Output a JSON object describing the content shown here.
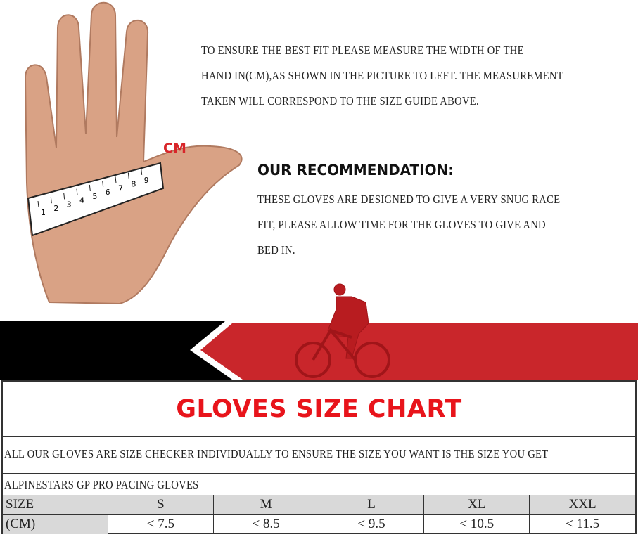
{
  "instructions": {
    "lines": [
      "TO ENSURE THE BEST FIT PLEASE MEASURE THE WIDTH OF THE",
      "HAND IN(CM),AS SHOWN IN THE PICTURE TO LEFT. THE MEASUREMENT",
      "TAKEN WILL CORRESPOND TO THE SIZE GUIDE ABOVE."
    ]
  },
  "hand_image": {
    "unit_label": "CM",
    "ruler_numbers": [
      "1",
      "2",
      "3",
      "4",
      "5",
      "6",
      "7",
      "8",
      "9"
    ]
  },
  "recommendation": {
    "title": "OUR RECOMMENDATION:",
    "lines": [
      "THESE GLOVES ARE DESIGNED TO GIVE A VERY SNUG RACE",
      "FIT, PLEASE ALLOW TIME FOR THE GLOVES TO GIVE AND",
      "BED IN."
    ]
  },
  "colors": {
    "accent_red": "#e8141b",
    "banner_red": "#c9262b",
    "banner_black": "#000000",
    "header_grey": "#d9d9d9"
  },
  "size_chart": {
    "title": "GLOVES SIZE CHART",
    "note": "ALL  OUR GLOVES ARE SIZE CHECKER INDIVIDUALLY TO ENSURE THE SIZE YOU WANT IS THE SIZE YOU GET",
    "product": "ALPINESTARS GP PRO PACING GLOVES",
    "size_row": [
      "SIZE",
      "S",
      "M",
      "L",
      "XL",
      "XXL"
    ],
    "cm_row": [
      "(CM)",
      "< 7.5",
      "< 8.5",
      "< 9.5",
      "< 10.5",
      "< 11.5"
    ]
  }
}
